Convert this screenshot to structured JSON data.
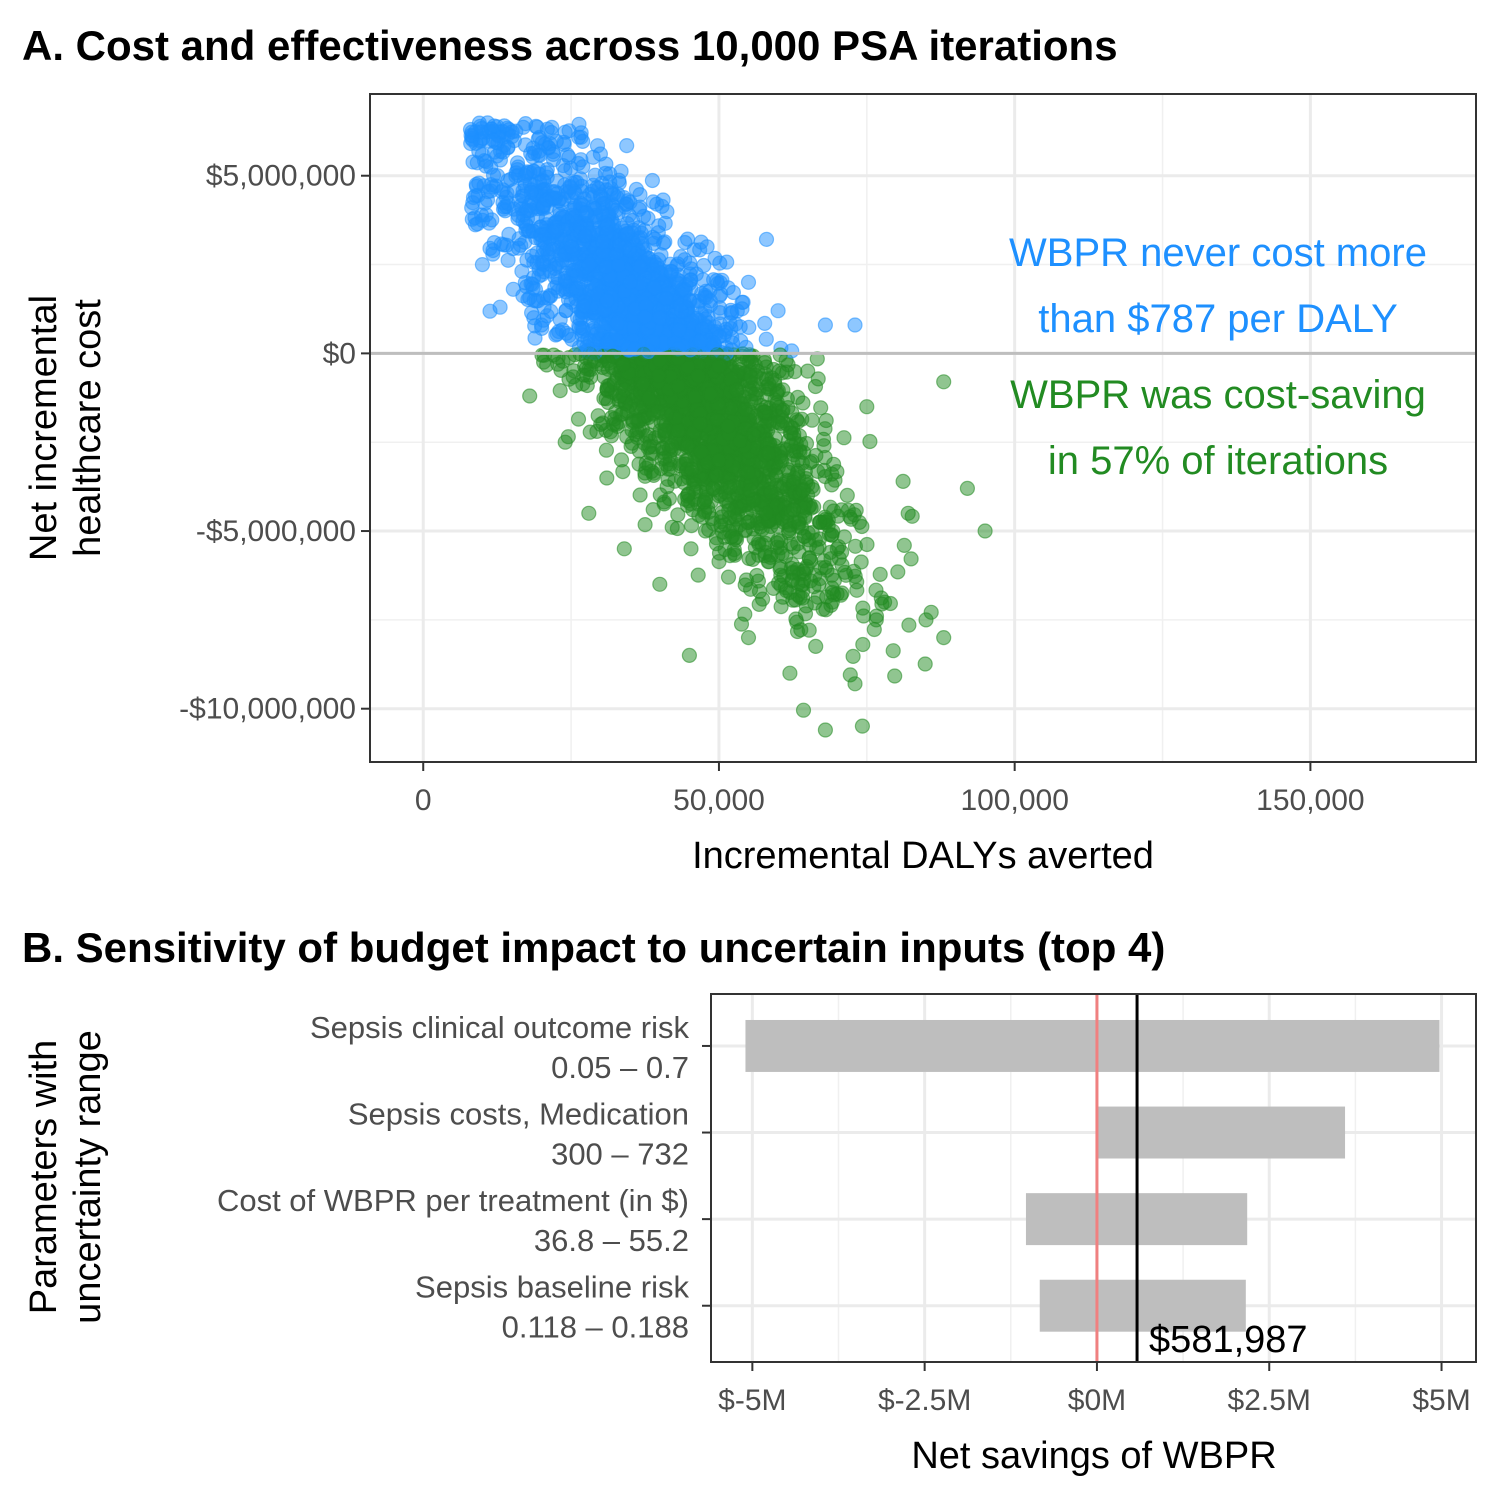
{
  "chart_data": [
    {
      "type": "scatter",
      "title": "A. Cost and effectiveness across 10,000 PSA iterations",
      "xlabel": "Incremental DALYs averted",
      "ylabel": [
        "Net incremental",
        "healthcare cost"
      ],
      "xlim": [
        -9000,
        178000
      ],
      "ylim": [
        -11500000,
        7300000
      ],
      "x_ticks": [
        0,
        50000,
        100000,
        150000
      ],
      "x_tick_labels": [
        "0",
        "50,000",
        "100,000",
        "150,000"
      ],
      "y_ticks": [
        5000000,
        0,
        -5000000,
        -10000000
      ],
      "y_tick_labels": [
        "$5,000,000",
        "$0",
        "-$5,000,000",
        "-$10,000,000"
      ],
      "grid": true,
      "reference_line_y": 0,
      "n_points": 10000,
      "series": [
        {
          "name": "Cost > 0",
          "color": "#1e90ff",
          "sample_points": [
            [
              8000,
              6300000
            ],
            [
              12000,
              6400000
            ],
            [
              15000,
              6100000
            ],
            [
              10000,
              5600000
            ],
            [
              22000,
              5600000
            ],
            [
              30000,
              4400000
            ],
            [
              38000,
              3800000
            ],
            [
              48000,
              3000000
            ],
            [
              55000,
              2000000
            ],
            [
              60000,
              1200000
            ],
            [
              68000,
              800000
            ],
            [
              73000,
              800000
            ],
            [
              9000,
              4700000
            ],
            [
              10000,
              2500000
            ],
            [
              13000,
              1300000
            ],
            [
              20000,
              800000
            ],
            [
              25000,
              3000000
            ],
            [
              35000,
              2000000
            ],
            [
              45000,
              1500000
            ],
            [
              52000,
              700000
            ],
            [
              16000,
              3800000
            ],
            [
              28000,
              2500000
            ],
            [
              40000,
              1000000
            ],
            [
              58000,
              400000
            ]
          ]
        },
        {
          "name": "Cost < 0",
          "color": "#228b22",
          "sample_points": [
            [
              18000,
              -1200000
            ],
            [
              24000,
              -2500000
            ],
            [
              28000,
              -4500000
            ],
            [
              34000,
              -5500000
            ],
            [
              40000,
              -6500000
            ],
            [
              45000,
              -8500000
            ],
            [
              55000,
              -8000000
            ],
            [
              62000,
              -9000000
            ],
            [
              68000,
              -10600000
            ],
            [
              73000,
              -9300000
            ],
            [
              78000,
              -7000000
            ],
            [
              85000,
              -7500000
            ],
            [
              88000,
              -8000000
            ],
            [
              88000,
              -800000
            ],
            [
              92000,
              -3800000
            ],
            [
              95000,
              -5000000
            ],
            [
              75000,
              -1500000
            ],
            [
              65000,
              -500000
            ],
            [
              40000,
              -200000
            ],
            [
              50000,
              -3000000
            ],
            [
              30000,
              -2000000
            ],
            [
              58000,
              -4500000
            ],
            [
              70000,
              -5500000
            ],
            [
              82000,
              -4500000
            ]
          ]
        }
      ],
      "annotations": [
        {
          "lines": [
            "WBPR never cost more",
            "than $787 per DALY"
          ],
          "color": "#1e90ff"
        },
        {
          "lines": [
            "WBPR was cost-saving",
            "in 57% of iterations"
          ],
          "color": "#228b22"
        }
      ]
    },
    {
      "type": "bar",
      "orientation": "horizontal",
      "title": "B. Sensitivity of budget impact to uncertain inputs (top 4)",
      "xlabel": "Net savings of WBPR",
      "ylabel": [
        "Parameters with",
        "uncertainty range"
      ],
      "xlim": [
        -5600000,
        5500000
      ],
      "x_ticks": [
        -5000000,
        -2500000,
        0,
        2500000,
        5000000
      ],
      "x_tick_labels": [
        "$-5M",
        "$-2.5M",
        "$0M",
        "$2.5M",
        "$5M"
      ],
      "grid": true,
      "bar_color": "#bebebe",
      "zero_line_color": "#f08080",
      "base_value": 581987,
      "base_label": "$581,987",
      "categories": [
        {
          "name": "Sepsis clinical outcome risk",
          "range": "0.05 – 0.7",
          "low": -5100000,
          "high": 4970000
        },
        {
          "name": "Sepsis costs, Medication",
          "range": "300 – 732",
          "low": 0,
          "high": 3600000
        },
        {
          "name": "Cost of WBPR per treatment (in $)",
          "range": "36.8 – 55.2",
          "low": -1030000,
          "high": 2180000
        },
        {
          "name": "Sepsis baseline risk",
          "range": "0.118 – 0.188",
          "low": -830000,
          "high": 2160000
        }
      ]
    }
  ]
}
